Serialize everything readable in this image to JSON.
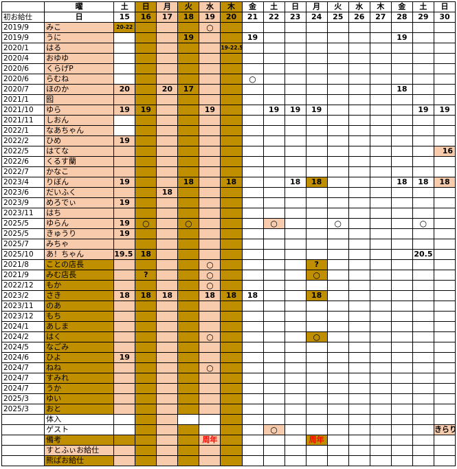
{
  "header_rows": [
    [
      "",
      "曜",
      "土",
      "日",
      "月",
      "火",
      "水",
      "木",
      "金",
      "土",
      "日",
      "月",
      "火",
      "水",
      "木",
      "金",
      "土",
      "日"
    ],
    [
      "初お給仕",
      "日",
      "15",
      "16",
      "17",
      "18",
      "19",
      "20",
      "21",
      "22",
      "23",
      "24",
      "25",
      "26",
      "27",
      "28",
      "29",
      "30"
    ]
  ],
  "rows": [
    [
      "2019/9",
      "みこ",
      "20-22",
      "",
      "",
      "",
      "○",
      "",
      "",
      "",
      "",
      "",
      "",
      "",
      "",
      "",
      "",
      ""
    ],
    [
      "2019/9",
      "うに",
      "",
      "",
      "",
      "19",
      "",
      "",
      "19",
      "",
      "",
      "",
      "",
      "",
      "",
      "19",
      "",
      ""
    ],
    [
      "2020/1",
      "はる",
      "",
      "",
      "",
      "",
      "",
      "19-22.5",
      "",
      "",
      "",
      "",
      "",
      "",
      "",
      "",
      "",
      ""
    ],
    [
      "2020/4",
      "おゆゆ",
      "",
      "",
      "",
      "",
      "",
      "",
      "",
      "",
      "",
      "",
      "",
      "",
      "",
      "",
      "",
      ""
    ],
    [
      "2020/6",
      "くらげP",
      "",
      "",
      "",
      "",
      "",
      "",
      "",
      "",
      "",
      "",
      "",
      "",
      "",
      "",
      "",
      ""
    ],
    [
      "2020/6",
      "らむね",
      "",
      "",
      "",
      "",
      "",
      "",
      "○",
      "",
      "",
      "",
      "",
      "",
      "",
      "",
      "",
      ""
    ],
    [
      "2020/7",
      "ほのか",
      "20",
      "",
      "20",
      "17",
      "",
      "",
      "",
      "",
      "",
      "",
      "",
      "",
      "",
      "18",
      "",
      ""
    ],
    [
      "2021/1",
      "囮",
      "",
      "",
      "",
      "",
      "",
      "",
      "",
      "",
      "",
      "",
      "",
      "",
      "",
      "",
      "",
      ""
    ],
    [
      "2021/10",
      "ゆら",
      "19",
      "19",
      "",
      "",
      "19",
      "",
      "",
      "19",
      "19",
      "19",
      "",
      "",
      "",
      "",
      "19",
      "19"
    ],
    [
      "2021/11",
      "しおん",
      "",
      "",
      "",
      "",
      "",
      "",
      "",
      "",
      "",
      "",
      "",
      "",
      "",
      "",
      "",
      ""
    ],
    [
      "2022/1",
      "なあちゃん",
      "",
      "",
      "",
      "",
      "",
      "",
      "",
      "",
      "",
      "",
      "",
      "",
      "",
      "",
      "",
      ""
    ],
    [
      "2022/2",
      "ひめ",
      "19",
      "",
      "",
      "",
      "",
      "",
      "",
      "",
      "",
      "",
      "",
      "",
      "",
      "",
      "",
      ""
    ],
    [
      "2022/5",
      "はてな",
      "",
      "",
      "",
      "",
      "",
      "",
      "",
      "",
      "",
      "",
      "",
      "",
      "",
      "",
      "",
      "16"
    ],
    [
      "2022/6",
      "くるす蘭",
      "",
      "",
      "",
      "",
      "",
      "",
      "",
      "",
      "",
      "",
      "",
      "",
      "",
      "",
      "",
      ""
    ],
    [
      "2022/7",
      "かなこ",
      "",
      "",
      "",
      "",
      "",
      "",
      "",
      "",
      "",
      "",
      "",
      "",
      "",
      "",
      "",
      ""
    ],
    [
      "2023/4",
      "りぼん",
      "19",
      "",
      "",
      "18",
      "",
      "18",
      "",
      "",
      "18",
      "18",
      "",
      "",
      "",
      "18",
      "18",
      "18"
    ],
    [
      "2023/6",
      "だいふく",
      "",
      "",
      "18",
      "",
      "",
      "",
      "",
      "",
      "",
      "",
      "",
      "",
      "",
      "",
      "",
      ""
    ],
    [
      "2023/9",
      "めろでぃ",
      "19",
      "",
      "",
      "",
      "",
      "",
      "",
      "",
      "",
      "",
      "",
      "",
      "",
      "",
      "",
      ""
    ],
    [
      "2023/11",
      "はち",
      "",
      "",
      "",
      "",
      "",
      "",
      "",
      "",
      "",
      "",
      "",
      "",
      "",
      "",
      "",
      ""
    ],
    [
      "2025/5",
      "ゆらん",
      "19",
      "○",
      "",
      "○",
      "",
      "",
      "",
      "○",
      "",
      "",
      "○",
      "",
      "",
      "",
      "○",
      ""
    ],
    [
      "2025/5",
      "きゅうり",
      "19",
      "",
      "",
      "",
      "",
      "",
      "",
      "",
      "",
      "",
      "",
      "",
      "",
      "",
      "",
      ""
    ],
    [
      "2025/7",
      "みちゃ",
      "",
      "",
      "",
      "",
      "",
      "",
      "",
      "",
      "",
      "",
      "",
      "",
      "",
      "",
      "",
      ""
    ],
    [
      "2025/10",
      "あ！ちゃん",
      "19.5",
      "18",
      "",
      "",
      "",
      "",
      "",
      "",
      "",
      "",
      "",
      "",
      "",
      "",
      "20.5",
      ""
    ],
    [
      "2021/8",
      "ことの店長",
      "",
      "",
      "",
      "",
      "○",
      "",
      "",
      "",
      "",
      "?",
      "",
      "",
      "",
      "",
      "",
      ""
    ],
    [
      "2021/9",
      "みむ店長",
      "",
      "?",
      "",
      "",
      "○",
      "",
      "",
      "",
      "",
      "○",
      "",
      "",
      "",
      "",
      "",
      ""
    ],
    [
      "2022/12",
      "もか",
      "",
      "",
      "",
      "",
      "○",
      "",
      "",
      "",
      "",
      "",
      "",
      "",
      "",
      "",
      "",
      ""
    ],
    [
      "2023/2",
      "さき",
      "18",
      "18",
      "18",
      "",
      "18",
      "18",
      "18",
      "",
      "",
      "18",
      "",
      "",
      "",
      "",
      "",
      ""
    ],
    [
      "2023/11",
      "のあ",
      "",
      "",
      "",
      "",
      "",
      "",
      "",
      "",
      "",
      "",
      "",
      "",
      "",
      "",
      "",
      ""
    ],
    [
      "2023/12",
      "もち",
      "",
      "",
      "",
      "",
      "",
      "",
      "",
      "",
      "",
      "",
      "",
      "",
      "",
      "",
      "",
      ""
    ],
    [
      "2024/1",
      "あしま",
      "",
      "",
      "",
      "",
      "",
      "",
      "",
      "",
      "",
      "",
      "",
      "",
      "",
      "",
      "",
      ""
    ],
    [
      "2024/2",
      "はく",
      "",
      "",
      "",
      "",
      "○",
      "",
      "",
      "",
      "",
      "○",
      "",
      "",
      "",
      "",
      "",
      ""
    ],
    [
      "2024/5",
      "なごみ",
      "",
      "",
      "",
      "",
      "",
      "",
      "",
      "",
      "",
      "",
      "",
      "",
      "",
      "",
      "",
      ""
    ],
    [
      "2024/6",
      "ひよ",
      "19",
      "",
      "",
      "",
      "",
      "",
      "",
      "",
      "",
      "",
      "",
      "",
      "",
      "",
      "",
      ""
    ],
    [
      "2024/7",
      "ねね",
      "",
      "",
      "",
      "",
      "○",
      "",
      "",
      "",
      "",
      "",
      "",
      "",
      "",
      "",
      "",
      ""
    ],
    [
      "2024/7",
      "すみれ",
      "",
      "",
      "",
      "",
      "",
      "",
      "",
      "",
      "",
      "",
      "",
      "",
      "",
      "",
      "",
      ""
    ],
    [
      "2024/7",
      "うか",
      "",
      "",
      "",
      "",
      "",
      "",
      "",
      "",
      "",
      "",
      "",
      "",
      "",
      "",
      "",
      ""
    ],
    [
      "2025/3",
      "ゆい",
      "",
      "",
      "",
      "",
      "",
      "",
      "",
      "",
      "",
      "",
      "",
      "",
      "",
      "",
      "",
      ""
    ],
    [
      "2025/3",
      "おと",
      "",
      "",
      "",
      "",
      "",
      "",
      "",
      "",
      "",
      "",
      "",
      "",
      "",
      "",
      "",
      ""
    ],
    [
      "",
      "体入",
      "",
      "",
      "",
      "",
      "",
      "",
      "",
      "",
      "",
      "",
      "",
      "",
      "",
      "",
      "",
      ""
    ],
    [
      "",
      "ゲスト",
      "",
      "",
      "",
      "",
      "",
      "",
      "",
      "○",
      "",
      "",
      "",
      "",
      "",
      "",
      "",
      "きらり"
    ],
    [
      "",
      "備考",
      "",
      "",
      "",
      "",
      "周年",
      "",
      "",
      "",
      "",
      "周年",
      "",
      "",
      "",
      "",
      "",
      ""
    ],
    [
      "",
      "すとふぃお給仕",
      "",
      "",
      "",
      "",
      "",
      "",
      "",
      "",
      "",
      "",
      "",
      "",
      "",
      "",
      "",
      ""
    ],
    [
      "",
      "熊ぱお給仕",
      "",
      "",
      "",
      "",
      "",
      "",
      "",
      "",
      "",
      "",
      "",
      "",
      "",
      "",
      "",
      ""
    ]
  ],
  "colors": {
    "peach": "#f8cbad",
    "gold": "#bf8f00",
    "white": "#ffffff",
    "red_text": "#ff0000"
  }
}
